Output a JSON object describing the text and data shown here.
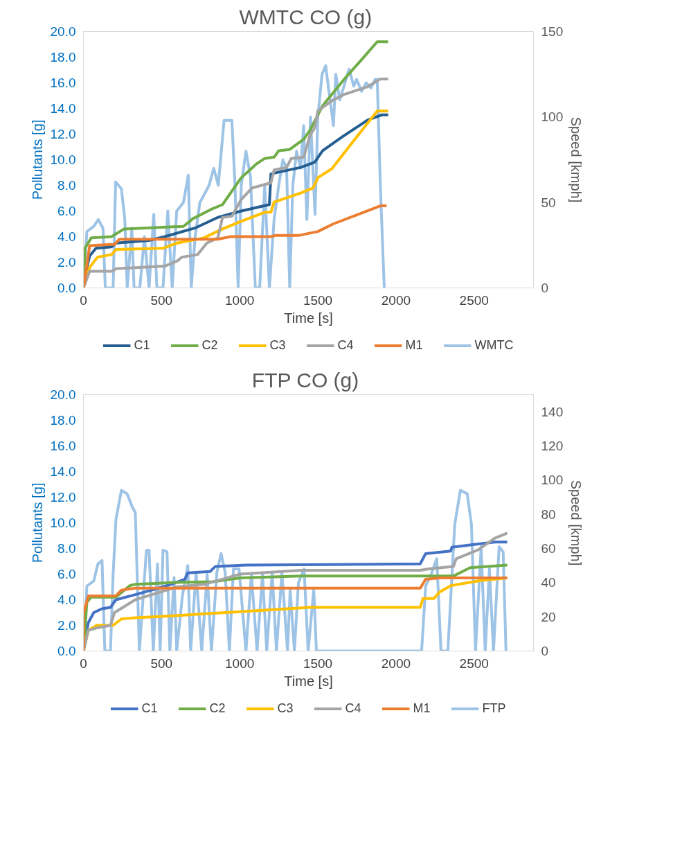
{
  "chart_data": [
    {
      "type": "line",
      "title": "WMTC  CO (g)",
      "xlabel": "Time [s]",
      "ylabel": "Pollutants [g]",
      "y2label": "Speed [kmph]",
      "xlim": [
        0,
        2880
      ],
      "xticks": [
        0,
        500,
        1000,
        1500,
        2000,
        2500
      ],
      "ylim": [
        0,
        20
      ],
      "yticks": [
        {
          "value": 0,
          "label": "0.0"
        },
        {
          "value": 2,
          "label": "2.0"
        },
        {
          "value": 4,
          "label": "4.0"
        },
        {
          "value": 6,
          "label": "6.0"
        },
        {
          "value": 8,
          "label": "8.0"
        },
        {
          "value": 10,
          "label": "10.0"
        },
        {
          "value": 12,
          "label": "12.0"
        },
        {
          "value": 14,
          "label": "14.0"
        },
        {
          "value": 16,
          "label": "16.0"
        },
        {
          "value": 18,
          "label": "18.0"
        },
        {
          "value": 20,
          "label": "20.0"
        }
      ],
      "y2lim": [
        0,
        150
      ],
      "y2ticks": [
        0,
        50,
        100,
        150
      ],
      "grid": false,
      "legend": "bottom",
      "marker": "none",
      "line_style": "solid",
      "series": [
        {
          "name": "C1",
          "color": "#255e91",
          "x": [
            0,
            10,
            40,
            80,
            180,
            210,
            420,
            520,
            720,
            860,
            1010,
            1190,
            1200,
            1390,
            1480,
            1530,
            1600,
            1670,
            1820,
            1910,
            1950
          ],
          "values": [
            0,
            1.0,
            2.5,
            3.1,
            3.2,
            3.5,
            3.7,
            4.0,
            4.7,
            5.5,
            6.0,
            6.5,
            8.9,
            9.4,
            9.8,
            10.7,
            11.3,
            11.9,
            13.1,
            13.5,
            13.5
          ]
        },
        {
          "name": "C2",
          "color": "#70ad47",
          "x": [
            0,
            10,
            50,
            180,
            260,
            640,
            700,
            830,
            890,
            1010,
            1110,
            1160,
            1220,
            1250,
            1320,
            1410,
            1450,
            1530,
            1670,
            1780,
            1880,
            1950
          ],
          "values": [
            0,
            3.1,
            3.9,
            4.0,
            4.6,
            4.8,
            5.4,
            6.2,
            6.5,
            8.6,
            9.7,
            10.1,
            10.2,
            10.7,
            10.8,
            11.6,
            12.3,
            14.2,
            16.3,
            17.8,
            19.2,
            19.2
          ]
        },
        {
          "name": "C3",
          "color": "#ffc000",
          "x": [
            0,
            40,
            90,
            180,
            210,
            510,
            600,
            770,
            890,
            1010,
            1160,
            1200,
            1220,
            1390,
            1470,
            1500,
            1590,
            1750,
            1880,
            1950
          ],
          "values": [
            0,
            1.6,
            2.4,
            2.6,
            3.0,
            3.1,
            3.5,
            3.9,
            4.6,
            5.2,
            5.9,
            5.9,
            6.7,
            7.4,
            7.8,
            8.6,
            9.3,
            11.8,
            13.8,
            13.8
          ]
        },
        {
          "name": "C4",
          "color": "#a5a5a5",
          "x": [
            0,
            40,
            180,
            210,
            520,
            600,
            630,
            730,
            790,
            860,
            890,
            950,
            1010,
            1080,
            1200,
            1220,
            1300,
            1330,
            1410,
            1450,
            1480,
            1500,
            1590,
            1670,
            1820,
            1900,
            1950
          ],
          "values": [
            0,
            1.3,
            1.3,
            1.5,
            1.7,
            2.1,
            2.4,
            2.6,
            3.5,
            3.9,
            5.5,
            5.6,
            6.9,
            7.8,
            8.2,
            9.2,
            9.4,
            10.1,
            10.2,
            11.9,
            12.5,
            13.8,
            14.6,
            15.1,
            15.7,
            16.3,
            16.3
          ]
        },
        {
          "name": "M1",
          "color": "#ed7d31",
          "x": [
            0,
            40,
            200,
            230,
            860,
            940,
            1200,
            1230,
            1380,
            1500,
            1600,
            1750,
            1900,
            1940
          ],
          "values": [
            0,
            3.3,
            3.4,
            3.8,
            3.8,
            4.0,
            4.0,
            4.1,
            4.1,
            4.4,
            5.0,
            5.7,
            6.4,
            6.4
          ]
        },
        {
          "name": "WMTC",
          "color": "#9dc3e6",
          "axis": "y2",
          "x": [
            0,
            22,
            66,
            95,
            125,
            140,
            190,
            206,
            243,
            265,
            280,
            310,
            324,
            361,
            390,
            420,
            450,
            470,
            509,
            540,
            568,
            597,
            640,
            671,
            690,
            715,
            745,
            775,
            804,
            834,
            863,
            900,
            950,
            970,
            990,
            1010,
            1040,
            1069,
            1100,
            1128,
            1160,
            1190,
            1220,
            1250,
            1276,
            1300,
            1320,
            1340,
            1364,
            1390,
            1409,
            1430,
            1453,
            1482,
            1500,
            1527,
            1550,
            1571,
            1600,
            1615,
            1640,
            1674,
            1700,
            1730,
            1748,
            1780,
            1810,
            1840,
            1866,
            1880,
            1900,
            1925
          ],
          "values": [
            0,
            33,
            36,
            40,
            35,
            0,
            0,
            62,
            58,
            40,
            0,
            35,
            0,
            0,
            30,
            0,
            43,
            0,
            0,
            45,
            0,
            45,
            50,
            66,
            0,
            30,
            50,
            55,
            60,
            70,
            60,
            98,
            98,
            60,
            0,
            60,
            80,
            65,
            0,
            0,
            60,
            0,
            40,
            60,
            75,
            70,
            0,
            60,
            80,
            70,
            95,
            40,
            100,
            43,
            100,
            125,
            130,
            115,
            95,
            125,
            110,
            120,
            128,
            118,
            122,
            115,
            120,
            117,
            122,
            122,
            60,
            0
          ]
        }
      ]
    },
    {
      "type": "line",
      "title": "FTP  CO (g)",
      "xlabel": "Time [s]",
      "ylabel": "Pollutants [g]",
      "y2label": "Speed [kmph]",
      "xlim": [
        0,
        2880
      ],
      "xticks": [
        0,
        500,
        1000,
        1500,
        2000,
        2500
      ],
      "ylim": [
        0,
        20
      ],
      "yticks": [
        {
          "value": 0,
          "label": "0.0"
        },
        {
          "value": 2,
          "label": "2.0"
        },
        {
          "value": 4,
          "label": "4.0"
        },
        {
          "value": 6,
          "label": "6.0"
        },
        {
          "value": 8,
          "label": "8.0"
        },
        {
          "value": 10,
          "label": "10.0"
        },
        {
          "value": 12,
          "label": "12.0"
        },
        {
          "value": 14,
          "label": "14.0"
        },
        {
          "value": 16,
          "label": "16.0"
        },
        {
          "value": 18,
          "label": "18.0"
        },
        {
          "value": 20,
          "label": "20.0"
        }
      ],
      "y2lim": [
        0,
        150
      ],
      "y2ticks": [
        0,
        20,
        40,
        60,
        80,
        100,
        120,
        140
      ],
      "grid": false,
      "legend": "bottom",
      "marker": "none",
      "line_style": "solid",
      "series": [
        {
          "name": "C1",
          "color": "#4472c4",
          "x": [
            0,
            31,
            66,
            119,
            173,
            208,
            332,
            509,
            650,
            668,
            810,
            845,
            1040,
            2155,
            2190,
            2350,
            2358,
            2491,
            2633,
            2712
          ],
          "values": [
            0,
            2.2,
            3.0,
            3.3,
            3.4,
            4.0,
            4.4,
            5.0,
            5.6,
            6.1,
            6.2,
            6.6,
            6.7,
            6.8,
            7.6,
            7.8,
            8.1,
            8.3,
            8.5,
            8.5
          ]
        },
        {
          "name": "C2",
          "color": "#70ad47",
          "x": [
            0,
            22,
            49,
            208,
            297,
            332,
            597,
            827,
            1004,
            1394,
            2155,
            2368,
            2474,
            2712
          ],
          "values": [
            0,
            3.8,
            4.2,
            4.2,
            5.1,
            5.2,
            5.35,
            5.4,
            5.7,
            5.85,
            5.85,
            5.85,
            6.5,
            6.7
          ]
        },
        {
          "name": "C3",
          "color": "#ffc000",
          "x": [
            0,
            31,
            84,
            190,
            243,
            332,
            509,
            774,
            1040,
            1447,
            2155,
            2173,
            2243,
            2279,
            2350,
            2544,
            2712
          ],
          "values": [
            0,
            1.6,
            2.0,
            2.0,
            2.5,
            2.6,
            2.7,
            2.9,
            3.1,
            3.4,
            3.4,
            4.1,
            4.1,
            4.6,
            5.1,
            5.5,
            5.7
          ]
        },
        {
          "name": "C4",
          "color": "#a5a5a5",
          "x": [
            0,
            31,
            84,
            173,
            199,
            332,
            438,
            597,
            774,
            916,
            1004,
            1394,
            2155,
            2208,
            2368,
            2385,
            2527,
            2633,
            2712
          ],
          "values": [
            0,
            1.6,
            1.8,
            2.0,
            3.0,
            4.0,
            4.4,
            5.0,
            5.2,
            5.7,
            6.0,
            6.3,
            6.3,
            6.4,
            6.6,
            7.2,
            7.9,
            8.8,
            9.2
          ]
        },
        {
          "name": "M1",
          "color": "#ed7d31",
          "x": [
            0,
            0,
            31,
            208,
            243,
            332,
            2155,
            2190,
            2279,
            2712
          ],
          "values": [
            0,
            2.9,
            4.3,
            4.3,
            4.75,
            4.9,
            4.9,
            5.6,
            5.7,
            5.7
          ]
        },
        {
          "name": "FTP",
          "color": "#9dc3e6",
          "axis": "y2",
          "x": [
            0,
            22,
            66,
            93,
            119,
            137,
            173,
            190,
            208,
            243,
            279,
            314,
            332,
            358,
            403,
            420,
            447,
            474,
            491,
            509,
            535,
            553,
            580,
            597,
            633,
            668,
            686,
            721,
            757,
            792,
            819,
            854,
            881,
            907,
            934,
            960,
            996,
            1040,
            1075,
            1111,
            1146,
            1173,
            1208,
            1235,
            1270,
            1306,
            1323,
            1350,
            1376,
            1412,
            1438,
            1474,
            1491,
            2164,
            2190,
            2226,
            2261,
            2288,
            2332,
            2376,
            2412,
            2456,
            2483,
            2509,
            2545,
            2571,
            2598,
            2624,
            2660,
            2686,
            2704
          ],
          "values": [
            0,
            38,
            41,
            51,
            53,
            0,
            0,
            45,
            77,
            94,
            92,
            84,
            81,
            0,
            59,
            59,
            0,
            51,
            0,
            59,
            58,
            0,
            43,
            0,
            32,
            50,
            0,
            46,
            0,
            45,
            0,
            46,
            57,
            46,
            0,
            48,
            48,
            0,
            45,
            0,
            45,
            0,
            46,
            0,
            46,
            0,
            36,
            0,
            40,
            48,
            0,
            36,
            0,
            0,
            38,
            45,
            54,
            0,
            0,
            74,
            94,
            92,
            74,
            0,
            61,
            0,
            48,
            0,
            61,
            58,
            0
          ]
        }
      ]
    }
  ]
}
